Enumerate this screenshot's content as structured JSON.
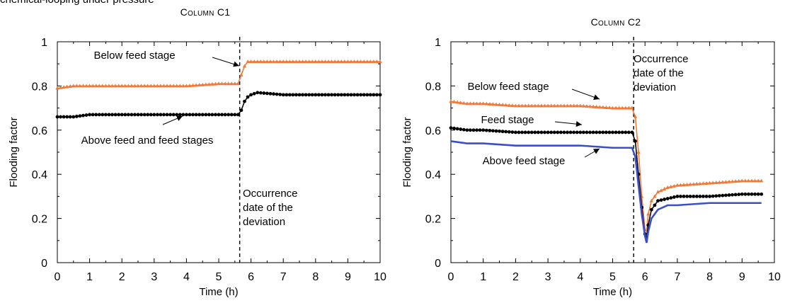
{
  "header_text": "chemical-looping under pressure",
  "chart_data": [
    {
      "type": "line",
      "title": "Column C1",
      "xlabel": "Time (h)",
      "ylabel": "Flooding factor",
      "xlim": [
        0,
        10
      ],
      "ylim": [
        0,
        1
      ],
      "xticks": [
        "0",
        "1",
        "2",
        "3",
        "4",
        "5",
        "6",
        "7",
        "8",
        "9",
        "10"
      ],
      "yticks": [
        "0",
        "0.2",
        "0.4",
        "0.6",
        "0.8",
        "1"
      ],
      "grid": false,
      "deviation_x": 5.65,
      "series": [
        {
          "name": "Below feed stage",
          "color": "#f07838",
          "marker": "triangle",
          "x": [
            0,
            0.5,
            1,
            2,
            3,
            4,
            5,
            5.6,
            5.7,
            5.8,
            5.9,
            6.0,
            7,
            8,
            9,
            10
          ],
          "y": [
            0.79,
            0.8,
            0.8,
            0.8,
            0.8,
            0.8,
            0.81,
            0.81,
            0.85,
            0.89,
            0.91,
            0.91,
            0.91,
            0.91,
            0.91,
            0.91
          ]
        },
        {
          "name": "Above feed and feed stages",
          "color": "#000000",
          "marker": "circle",
          "x": [
            0,
            0.5,
            1,
            2,
            3,
            4,
            5,
            5.6,
            5.7,
            5.8,
            5.9,
            6.0,
            6.2,
            7,
            8,
            9,
            10
          ],
          "y": [
            0.66,
            0.66,
            0.67,
            0.67,
            0.67,
            0.67,
            0.67,
            0.67,
            0.69,
            0.73,
            0.75,
            0.76,
            0.77,
            0.76,
            0.76,
            0.76,
            0.76
          ]
        }
      ],
      "annotations": [
        {
          "text": "Below feed stage"
        },
        {
          "text": "Above feed and feed stages"
        },
        {
          "text": "Occurrence\ndate of the\ndeviation"
        }
      ]
    },
    {
      "type": "line",
      "title": "Column C2",
      "xlabel": "Time (h)",
      "ylabel": "Flooding factor",
      "xlim": [
        0,
        10
      ],
      "ylim": [
        0,
        1
      ],
      "xticks": [
        "0",
        "1",
        "2",
        "3",
        "4",
        "5",
        "6",
        "7",
        "8",
        "9",
        "10"
      ],
      "yticks": [
        "0",
        "0.2",
        "0.4",
        "0.6",
        "0.8",
        "1"
      ],
      "grid": false,
      "deviation_x": 5.65,
      "series": [
        {
          "name": "Below feed stage",
          "color": "#f07838",
          "marker": "triangle",
          "x": [
            0,
            0.5,
            1,
            2,
            3,
            4,
            5,
            5.6,
            5.7,
            5.8,
            5.9,
            6.0,
            6.05,
            6.1,
            6.2,
            6.4,
            6.7,
            7,
            8,
            9,
            9.6
          ],
          "y": [
            0.73,
            0.72,
            0.72,
            0.71,
            0.71,
            0.71,
            0.7,
            0.7,
            0.66,
            0.5,
            0.3,
            0.15,
            0.14,
            0.22,
            0.28,
            0.32,
            0.34,
            0.35,
            0.36,
            0.37,
            0.37
          ]
        },
        {
          "name": "Feed stage",
          "color": "#000000",
          "marker": "circle",
          "x": [
            0,
            0.5,
            1,
            2,
            3,
            4,
            5,
            5.6,
            5.7,
            5.8,
            5.9,
            6.0,
            6.05,
            6.1,
            6.2,
            6.4,
            6.7,
            7,
            8,
            9,
            9.6
          ],
          "y": [
            0.61,
            0.6,
            0.6,
            0.59,
            0.59,
            0.59,
            0.59,
            0.59,
            0.55,
            0.4,
            0.25,
            0.13,
            0.11,
            0.17,
            0.24,
            0.28,
            0.29,
            0.3,
            0.3,
            0.31,
            0.31
          ]
        },
        {
          "name": "Above feed stage",
          "color": "#3a4fc8",
          "marker": "none",
          "x": [
            0,
            0.5,
            1,
            2,
            3,
            4,
            5,
            5.6,
            5.7,
            5.8,
            5.9,
            6.0,
            6.05,
            6.1,
            6.2,
            6.4,
            6.7,
            7,
            8,
            9,
            9.6
          ],
          "y": [
            0.55,
            0.54,
            0.54,
            0.53,
            0.53,
            0.53,
            0.52,
            0.52,
            0.48,
            0.35,
            0.22,
            0.12,
            0.09,
            0.14,
            0.2,
            0.24,
            0.26,
            0.26,
            0.27,
            0.27,
            0.27
          ]
        }
      ],
      "annotations": [
        {
          "text": "Below feed stage"
        },
        {
          "text": "Feed stage"
        },
        {
          "text": "Above feed stage"
        },
        {
          "text": "Occurrence\ndate of the\ndeviation"
        }
      ]
    }
  ]
}
